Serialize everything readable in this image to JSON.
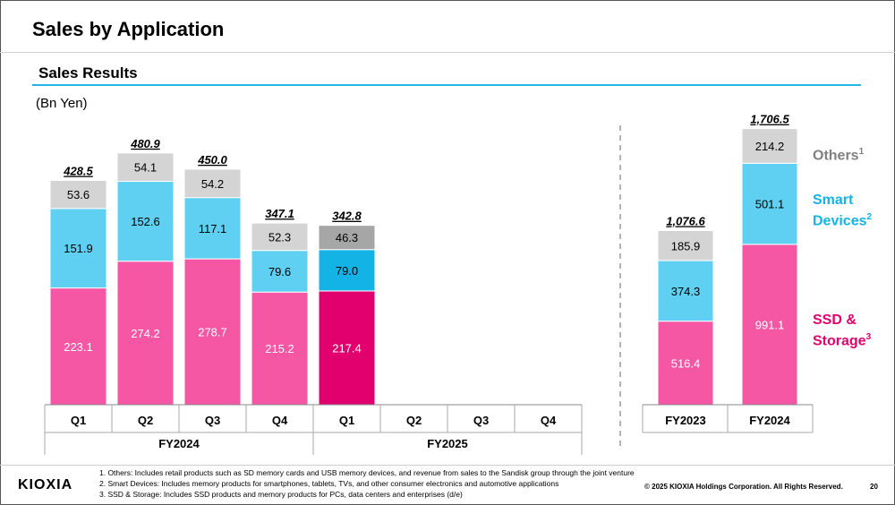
{
  "page": {
    "title": "Sales by Application",
    "section_title": "Sales Results",
    "unit": "(Bn Yen)",
    "logo": "KIOXIA",
    "copyright": "© 2025 KIOXIA Holdings Corporation. All Rights Reserved.",
    "page_number": "20",
    "footnotes": [
      "1. Others: Includes retail products such as SD memory cards and USB memory devices, and revenue from sales to the Sandisk group through the joint venture",
      "2. Smart Devices: Includes memory products for smartphones, tablets, TVs, and other consumer electronics and automotive applications",
      "3. SSD & Storage: Includes SSD products and memory products for PCs, data centers and enterprises (d/e)"
    ]
  },
  "legend": {
    "others": {
      "label": "Others",
      "sup": "1"
    },
    "smart": {
      "label1": "Smart",
      "label2": "Devices",
      "sup": "2"
    },
    "ssd": {
      "label1": "SSD &",
      "label2": "Storage",
      "sup": "3"
    }
  },
  "colors": {
    "ssd": "#f557a5",
    "smart": "#5fd0f1",
    "others": "#d4d4d4",
    "ssd_highlight": "#e2006f",
    "smart_highlight": "#14b3e6",
    "others_highlight": "#a6a6a6",
    "legend_others": "#808080",
    "legend_smart": "#14b3e6",
    "legend_ssd": "#e2006f"
  },
  "chart_data": [
    {
      "type": "bar",
      "stacked": true,
      "categories": [
        "Q1",
        "Q2",
        "Q3",
        "Q4",
        "Q1",
        "Q2",
        "Q3",
        "Q4"
      ],
      "groups": [
        {
          "label": "FY2024",
          "span": 4
        },
        {
          "label": "FY2025",
          "span": 4
        }
      ],
      "series": [
        {
          "name": "SSD & Storage",
          "values": [
            223.1,
            274.2,
            278.7,
            215.2,
            217.4,
            null,
            null,
            null
          ]
        },
        {
          "name": "Smart Devices",
          "values": [
            151.9,
            152.6,
            117.1,
            79.6,
            79.0,
            null,
            null,
            null
          ]
        },
        {
          "name": "Others",
          "values": [
            53.6,
            54.1,
            54.2,
            52.3,
            46.3,
            null,
            null,
            null
          ]
        }
      ],
      "value_labels": [
        "223.1",
        "274.2",
        "278.7",
        "215.2",
        "217.4",
        "151.9",
        "152.6",
        "117.1",
        "79.6",
        "79.0",
        "53.6",
        "54.1",
        "54.2",
        "52.3",
        "46.3"
      ],
      "totals": [
        "428.5",
        "480.9",
        "450.0",
        "347.1",
        "342.8",
        null,
        null,
        null
      ],
      "highlight_index": 4
    },
    {
      "type": "bar",
      "stacked": true,
      "categories": [
        "FY2023",
        "FY2024"
      ],
      "series": [
        {
          "name": "SSD & Storage",
          "values": [
            516.4,
            991.1
          ]
        },
        {
          "name": "Smart Devices",
          "values": [
            374.3,
            501.1
          ]
        },
        {
          "name": "Others",
          "values": [
            185.9,
            214.2
          ]
        }
      ],
      "value_labels": [
        "516.4",
        "991.1",
        "374.3",
        "501.1",
        "185.9",
        "214.2"
      ],
      "totals": [
        "1,076.6",
        "1,706.5"
      ]
    }
  ]
}
